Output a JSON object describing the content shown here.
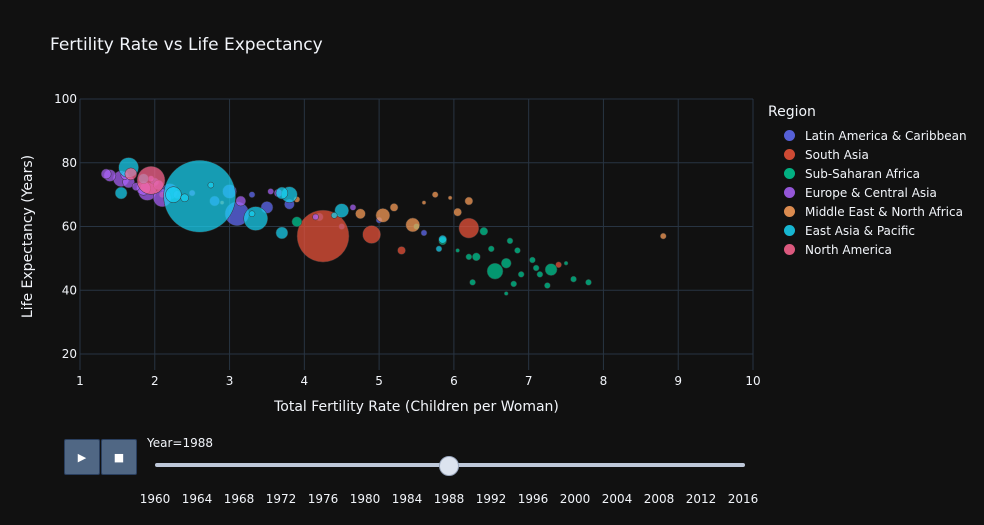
{
  "title": "Fertility Rate vs Life Expectancy",
  "colors": {
    "Latin America & Caribbean": "#636efa",
    "South Asia": "#ef553b",
    "Sub-Saharan Africa": "#00cc96",
    "Europe & Central Asia": "#ab63fa",
    "Middle East & North Africa": "#ffa15a",
    "East Asia & Pacific": "#19d3f3",
    "North America": "#ff6692"
  },
  "legend": {
    "title": "Region",
    "items": [
      "Latin America & Caribbean",
      "South Asia",
      "Sub-Saharan Africa",
      "Europe & Central Asia",
      "Middle East & North Africa",
      "East Asia & Pacific",
      "North America"
    ]
  },
  "controls": {
    "play_icon": "▶",
    "stop_icon": "■"
  },
  "slider": {
    "label": "Year=1988",
    "current": 1988,
    "ticks": [
      "1960",
      "1964",
      "1968",
      "1972",
      "1976",
      "1980",
      "1984",
      "1988",
      "1992",
      "1996",
      "2000",
      "2004",
      "2008",
      "2012",
      "2016"
    ]
  },
  "chart_data": {
    "type": "scatter",
    "title": "Fertility Rate vs Life Expectancy",
    "xlabel": "Total Fertility Rate (Children per Woman)",
    "ylabel": "Life Expectancy (Years)",
    "xlim": [
      1,
      10
    ],
    "ylim": [
      15,
      100
    ],
    "xticks": [
      1,
      2,
      3,
      4,
      5,
      6,
      7,
      8,
      9,
      10
    ],
    "yticks": [
      20,
      40,
      60,
      80,
      100
    ],
    "grid": true,
    "legend_position": "right",
    "series": [
      {
        "name": "Latin America & Caribbean",
        "points": [
          {
            "x": 3.1,
            "y": 64,
            "s": 12
          },
          {
            "x": 2.2,
            "y": 71,
            "s": 8
          },
          {
            "x": 3.5,
            "y": 66,
            "s": 6
          },
          {
            "x": 2.8,
            "y": 68,
            "s": 5
          },
          {
            "x": 3.8,
            "y": 67,
            "s": 5
          },
          {
            "x": 4.2,
            "y": 63,
            "s": 4
          },
          {
            "x": 5.6,
            "y": 58,
            "s": 3
          },
          {
            "x": 5.0,
            "y": 62,
            "s": 3
          },
          {
            "x": 2.0,
            "y": 74,
            "s": 4
          },
          {
            "x": 3.0,
            "y": 71,
            "s": 7
          },
          {
            "x": 4.5,
            "y": 60,
            "s": 3
          },
          {
            "x": 3.3,
            "y": 70,
            "s": 3
          }
        ]
      },
      {
        "name": "South Asia",
        "points": [
          {
            "x": 4.25,
            "y": 57,
            "s": 26
          },
          {
            "x": 6.2,
            "y": 59.5,
            "s": 10
          },
          {
            "x": 4.9,
            "y": 57.5,
            "s": 9
          },
          {
            "x": 5.3,
            "y": 52.5,
            "s": 4
          },
          {
            "x": 7.4,
            "y": 48,
            "s": 3
          },
          {
            "x": 2.1,
            "y": 70,
            "s": 3
          }
        ]
      },
      {
        "name": "Sub-Saharan Africa",
        "points": [
          {
            "x": 6.55,
            "y": 46,
            "s": 8
          },
          {
            "x": 7.3,
            "y": 46.5,
            "s": 6
          },
          {
            "x": 6.7,
            "y": 48.5,
            "s": 5
          },
          {
            "x": 6.4,
            "y": 58.5,
            "s": 4
          },
          {
            "x": 6.3,
            "y": 50.5,
            "s": 4
          },
          {
            "x": 6.85,
            "y": 52.5,
            "s": 3
          },
          {
            "x": 7.1,
            "y": 47,
            "s": 3
          },
          {
            "x": 6.9,
            "y": 45,
            "s": 3
          },
          {
            "x": 6.25,
            "y": 42.5,
            "s": 3
          },
          {
            "x": 7.6,
            "y": 43.5,
            "s": 3
          },
          {
            "x": 6.5,
            "y": 53,
            "s": 3
          },
          {
            "x": 6.75,
            "y": 55.5,
            "s": 3
          },
          {
            "x": 7.05,
            "y": 49.5,
            "s": 3
          },
          {
            "x": 7.25,
            "y": 41.5,
            "s": 3
          },
          {
            "x": 5.85,
            "y": 55.5,
            "s": 4
          },
          {
            "x": 6.2,
            "y": 50.5,
            "s": 3
          },
          {
            "x": 6.8,
            "y": 42,
            "s": 3
          },
          {
            "x": 7.8,
            "y": 42.5,
            "s": 3
          },
          {
            "x": 3.9,
            "y": 61.5,
            "s": 5
          },
          {
            "x": 5.5,
            "y": 60,
            "s": 3
          },
          {
            "x": 6.7,
            "y": 39,
            "s": 2
          },
          {
            "x": 7.15,
            "y": 45,
            "s": 3
          },
          {
            "x": 6.05,
            "y": 52.5,
            "s": 2
          },
          {
            "x": 7.5,
            "y": 48.5,
            "s": 2
          }
        ]
      },
      {
        "name": "Europe & Central Asia",
        "points": [
          {
            "x": 1.9,
            "y": 71,
            "s": 9
          },
          {
            "x": 1.55,
            "y": 75,
            "s": 8
          },
          {
            "x": 1.85,
            "y": 72,
            "s": 7
          },
          {
            "x": 2.1,
            "y": 69,
            "s": 9
          },
          {
            "x": 1.4,
            "y": 76,
            "s": 6
          },
          {
            "x": 1.65,
            "y": 74,
            "s": 6
          },
          {
            "x": 1.35,
            "y": 76.5,
            "s": 5
          },
          {
            "x": 3.15,
            "y": 68,
            "s": 5
          },
          {
            "x": 2.05,
            "y": 73,
            "s": 5
          },
          {
            "x": 3.65,
            "y": 70.5,
            "s": 4
          },
          {
            "x": 1.75,
            "y": 72.5,
            "s": 4
          },
          {
            "x": 2.3,
            "y": 70,
            "s": 4
          },
          {
            "x": 4.15,
            "y": 63,
            "s": 3
          },
          {
            "x": 4.65,
            "y": 66,
            "s": 3
          },
          {
            "x": 3.55,
            "y": 71,
            "s": 3
          },
          {
            "x": 1.6,
            "y": 76,
            "s": 4
          },
          {
            "x": 2.5,
            "y": 70.5,
            "s": 3
          },
          {
            "x": 1.95,
            "y": 75,
            "s": 3
          }
        ]
      },
      {
        "name": "Middle East & North Africa",
        "points": [
          {
            "x": 5.05,
            "y": 63.5,
            "s": 7
          },
          {
            "x": 5.45,
            "y": 60.5,
            "s": 7
          },
          {
            "x": 4.75,
            "y": 64,
            "s": 5
          },
          {
            "x": 6.2,
            "y": 68,
            "s": 4
          },
          {
            "x": 5.75,
            "y": 70,
            "s": 3
          },
          {
            "x": 5.2,
            "y": 66,
            "s": 4
          },
          {
            "x": 6.05,
            "y": 64.5,
            "s": 4
          },
          {
            "x": 5.95,
            "y": 69,
            "s": 2
          },
          {
            "x": 8.8,
            "y": 57,
            "s": 3
          },
          {
            "x": 5.6,
            "y": 67.5,
            "s": 2
          },
          {
            "x": 3.9,
            "y": 68.5,
            "s": 3
          },
          {
            "x": 2.9,
            "y": 67.5,
            "s": 2
          }
        ]
      },
      {
        "name": "East Asia & Pacific",
        "points": [
          {
            "x": 2.6,
            "y": 69.5,
            "s": 36
          },
          {
            "x": 1.65,
            "y": 78.5,
            "s": 10
          },
          {
            "x": 3.35,
            "y": 62.5,
            "s": 12
          },
          {
            "x": 2.25,
            "y": 70,
            "s": 8
          },
          {
            "x": 3.8,
            "y": 70,
            "s": 8
          },
          {
            "x": 4.5,
            "y": 65,
            "s": 7
          },
          {
            "x": 3.7,
            "y": 58,
            "s": 6
          },
          {
            "x": 1.55,
            "y": 70.5,
            "s": 6
          },
          {
            "x": 3.7,
            "y": 70.5,
            "s": 6
          },
          {
            "x": 5.85,
            "y": 56,
            "s": 4
          },
          {
            "x": 2.4,
            "y": 69,
            "s": 4
          },
          {
            "x": 1.85,
            "y": 75,
            "s": 5
          },
          {
            "x": 5.8,
            "y": 53,
            "s": 3
          },
          {
            "x": 3.3,
            "y": 64,
            "s": 3
          },
          {
            "x": 4.4,
            "y": 63.5,
            "s": 3
          },
          {
            "x": 2.75,
            "y": 73,
            "s": 3
          }
        ]
      },
      {
        "name": "North America",
        "points": [
          {
            "x": 1.95,
            "y": 74.5,
            "s": 14
          },
          {
            "x": 1.68,
            "y": 76.5,
            "s": 6
          }
        ]
      }
    ]
  }
}
